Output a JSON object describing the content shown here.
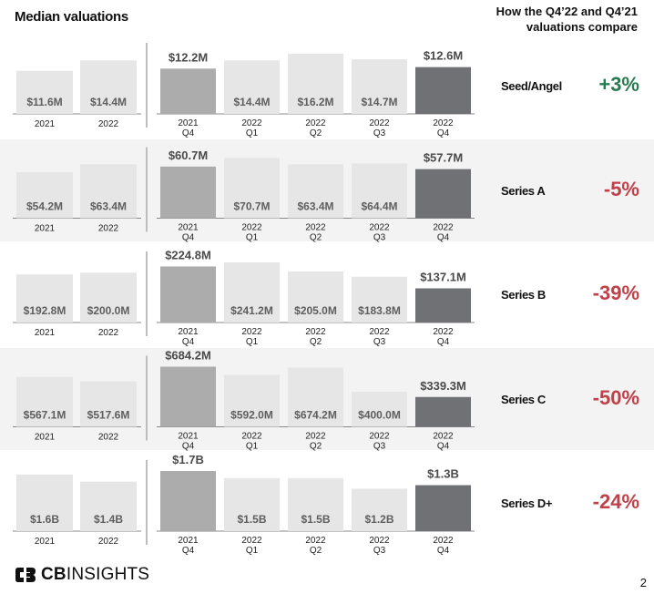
{
  "page": {
    "title": "Median valuations",
    "compare_title": "How the Q4’22 and Q4’21 valuations compare",
    "logo_text_bold": "CB",
    "logo_text_regular": "INSIGHTS",
    "page_number": "2"
  },
  "colors": {
    "annual_bar": "#e6e6e6",
    "quarter_bar": "#e6e6e6",
    "q4_2021_bar": "#acacac",
    "q4_2022_bar": "#707174",
    "positive": "#2a7b52",
    "negative": "#c0414a",
    "shaded_row": "#f3f3f3"
  },
  "chart_data": [
    {
      "type": "bar",
      "stage": "Seed/Angel",
      "change": "+3%",
      "direction": "positive",
      "annual": {
        "categories": [
          "2021",
          "2022"
        ],
        "values": [
          11.6,
          14.4
        ],
        "labels": [
          "$11.6M",
          "$14.4M"
        ]
      },
      "quarterly": {
        "categories": [
          [
            "2021",
            "Q4"
          ],
          [
            "2022",
            "Q1"
          ],
          [
            "2022",
            "Q2"
          ],
          [
            "2022",
            "Q3"
          ],
          [
            "2022",
            "Q4"
          ]
        ],
        "values": [
          12.2,
          14.4,
          16.2,
          14.7,
          12.6
        ],
        "labels": [
          "$12.2M",
          "$14.4M",
          "$16.2M",
          "$14.7M",
          "$12.6M"
        ]
      },
      "unit": "$M"
    },
    {
      "type": "bar",
      "stage": "Series A",
      "change": "-5%",
      "direction": "negative",
      "annual": {
        "categories": [
          "2021",
          "2022"
        ],
        "values": [
          54.2,
          63.4
        ],
        "labels": [
          "$54.2M",
          "$63.4M"
        ]
      },
      "quarterly": {
        "categories": [
          [
            "2021",
            "Q4"
          ],
          [
            "2022",
            "Q1"
          ],
          [
            "2022",
            "Q2"
          ],
          [
            "2022",
            "Q3"
          ],
          [
            "2022",
            "Q4"
          ]
        ],
        "values": [
          60.7,
          70.7,
          63.4,
          64.4,
          57.7
        ],
        "labels": [
          "$60.7M",
          "$70.7M",
          "$63.4M",
          "$64.4M",
          "$57.7M"
        ]
      },
      "unit": "$M"
    },
    {
      "type": "bar",
      "stage": "Series B",
      "change": "-39%",
      "direction": "negative",
      "annual": {
        "categories": [
          "2021",
          "2022"
        ],
        "values": [
          192.8,
          200.0
        ],
        "labels": [
          "$192.8M",
          "$200.0M"
        ]
      },
      "quarterly": {
        "categories": [
          [
            "2021",
            "Q4"
          ],
          [
            "2022",
            "Q1"
          ],
          [
            "2022",
            "Q2"
          ],
          [
            "2022",
            "Q3"
          ],
          [
            "2022",
            "Q4"
          ]
        ],
        "values": [
          224.8,
          241.2,
          205.0,
          183.8,
          137.1
        ],
        "labels": [
          "$224.8M",
          "$241.2M",
          "$205.0M",
          "$183.8M",
          "$137.1M"
        ]
      },
      "unit": "$M"
    },
    {
      "type": "bar",
      "stage": "Series C",
      "change": "-50%",
      "direction": "negative",
      "annual": {
        "categories": [
          "2021",
          "2022"
        ],
        "values": [
          567.1,
          517.6
        ],
        "labels": [
          "$567.1M",
          "$517.6M"
        ]
      },
      "quarterly": {
        "categories": [
          [
            "2021",
            "Q4"
          ],
          [
            "2022",
            "Q1"
          ],
          [
            "2022",
            "Q2"
          ],
          [
            "2022",
            "Q3"
          ],
          [
            "2022",
            "Q4"
          ]
        ],
        "values": [
          684.2,
          592.0,
          674.2,
          400.0,
          339.3
        ],
        "labels": [
          "$684.2M",
          "$592.0M",
          "$674.2M",
          "$400.0M",
          "$339.3M"
        ]
      },
      "unit": "$M"
    },
    {
      "type": "bar",
      "stage": "Series D+",
      "change": "-24%",
      "direction": "negative",
      "annual": {
        "categories": [
          "2021",
          "2022"
        ],
        "values": [
          1.6,
          1.4
        ],
        "labels": [
          "$1.6B",
          "$1.4B"
        ]
      },
      "quarterly": {
        "categories": [
          [
            "2021",
            "Q4"
          ],
          [
            "2022",
            "Q1"
          ],
          [
            "2022",
            "Q2"
          ],
          [
            "2022",
            "Q3"
          ],
          [
            "2022",
            "Q4"
          ]
        ],
        "values": [
          1.7,
          1.5,
          1.5,
          1.2,
          1.3
        ],
        "labels": [
          "$1.7B",
          "$1.5B",
          "$1.5B",
          "$1.2B",
          "$1.3B"
        ]
      },
      "unit": "$B"
    }
  ]
}
